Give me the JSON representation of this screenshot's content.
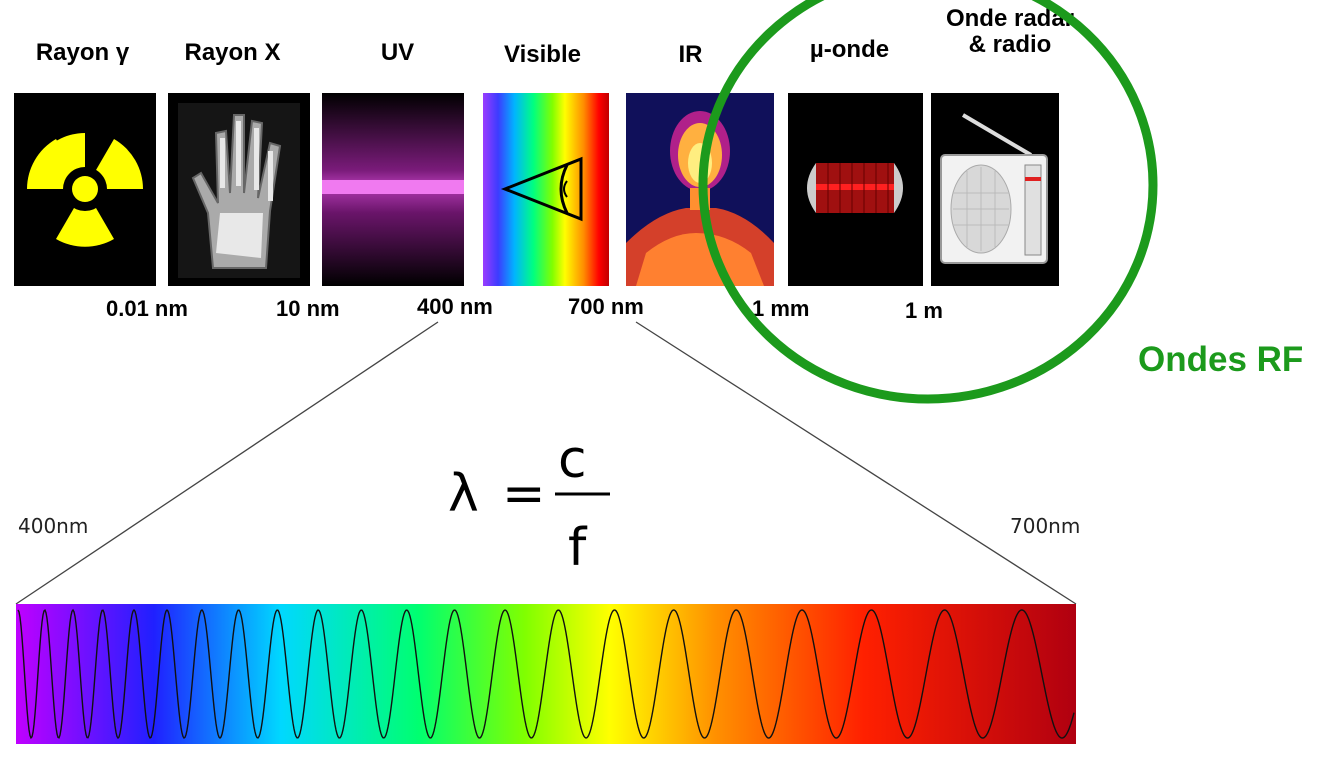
{
  "bands": [
    {
      "id": "gamma",
      "label": "Rayon γ"
    },
    {
      "id": "xray",
      "label": "Rayon X"
    },
    {
      "id": "uv",
      "label": "UV"
    },
    {
      "id": "visible",
      "label": "Visible"
    },
    {
      "id": "ir",
      "label": "IR"
    },
    {
      "id": "micro",
      "label": "µ-onde"
    },
    {
      "id": "radio",
      "label_line1": "Onde radar",
      "label_line2": "& radio"
    }
  ],
  "ticks": [
    "0.01 nm",
    "10 nm",
    "400 nm",
    "700 nm",
    "1 mm",
    "1 m"
  ],
  "formula": {
    "lhs": "λ",
    "eq": "=",
    "num": "c",
    "den": "f"
  },
  "zoom": {
    "left_label": "400nm",
    "right_label": "700nm"
  },
  "rf_label": "Ondes RF",
  "colors": {
    "rf_green": "#1c9a1c",
    "gamma_yellow": "#ffff00",
    "uv_magenta": "#e040e0"
  },
  "icons": [
    "radioactive-icon",
    "xray-hand-icon",
    "uv-beam-icon",
    "eye-icon",
    "thermal-person-icon",
    "magnetron-icon",
    "radio-icon"
  ]
}
